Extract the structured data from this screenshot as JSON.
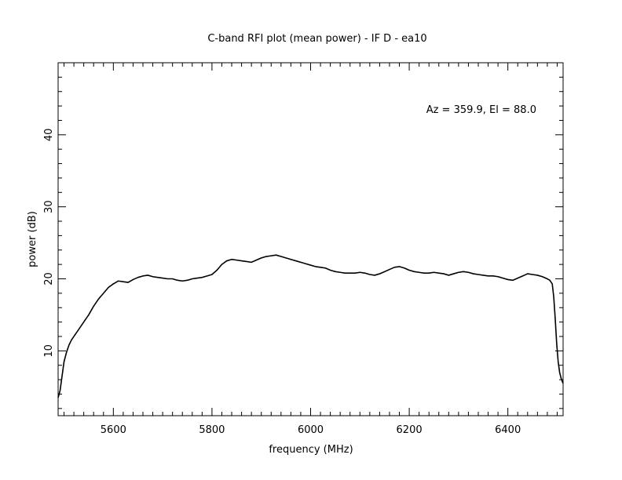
{
  "chart_data": {
    "type": "line",
    "title": "C-band RFI plot (mean power) - IF D - ea10",
    "xlabel": "frequency (MHz)",
    "ylabel": "power (dB)",
    "annotation": "Az = 359.9, El = 88.0",
    "xlim": [
      5488,
      6512
    ],
    "ylim": [
      1,
      50
    ],
    "xticks": [
      5600,
      5800,
      6000,
      6200,
      6400
    ],
    "yticks": [
      10,
      20,
      30,
      40
    ],
    "grid": false,
    "series": [
      {
        "color": "#000000",
        "x": [
          5488,
          5492,
          5496,
          5500,
          5505,
          5510,
          5515,
          5520,
          5530,
          5540,
          5550,
          5560,
          5570,
          5580,
          5590,
          5600,
          5610,
          5620,
          5630,
          5640,
          5650,
          5660,
          5670,
          5680,
          5690,
          5700,
          5710,
          5720,
          5730,
          5740,
          5750,
          5760,
          5770,
          5780,
          5790,
          5800,
          5810,
          5820,
          5830,
          5840,
          5850,
          5860,
          5870,
          5880,
          5890,
          5900,
          5910,
          5920,
          5930,
          5940,
          5950,
          5960,
          5970,
          5980,
          5990,
          6000,
          6010,
          6020,
          6030,
          6040,
          6050,
          6060,
          6070,
          6080,
          6090,
          6100,
          6110,
          6120,
          6130,
          6140,
          6150,
          6160,
          6170,
          6180,
          6190,
          6200,
          6210,
          6220,
          6230,
          6240,
          6250,
          6260,
          6270,
          6280,
          6290,
          6300,
          6310,
          6320,
          6330,
          6340,
          6350,
          6360,
          6370,
          6380,
          6390,
          6400,
          6410,
          6420,
          6430,
          6440,
          6450,
          6460,
          6470,
          6480,
          6485,
          6490,
          6493,
          6496,
          6499,
          6502,
          6505,
          6508,
          6510,
          6512
        ],
        "y": [
          3.5,
          4.5,
          6.5,
          8.5,
          9.8,
          10.8,
          11.5,
          12.0,
          13.0,
          14.0,
          15.0,
          16.2,
          17.2,
          18.0,
          18.8,
          19.3,
          19.7,
          19.6,
          19.5,
          19.9,
          20.2,
          20.4,
          20.5,
          20.3,
          20.2,
          20.1,
          20.0,
          20.0,
          19.8,
          19.7,
          19.8,
          20.0,
          20.1,
          20.2,
          20.4,
          20.6,
          21.2,
          22.0,
          22.5,
          22.7,
          22.6,
          22.5,
          22.4,
          22.3,
          22.6,
          22.9,
          23.1,
          23.2,
          23.3,
          23.1,
          22.9,
          22.7,
          22.5,
          22.3,
          22.1,
          21.9,
          21.7,
          21.6,
          21.5,
          21.2,
          21.0,
          20.9,
          20.8,
          20.8,
          20.8,
          20.9,
          20.8,
          20.6,
          20.5,
          20.7,
          21.0,
          21.3,
          21.6,
          21.7,
          21.5,
          21.2,
          21.0,
          20.9,
          20.8,
          20.8,
          20.9,
          20.8,
          20.7,
          20.5,
          20.7,
          20.9,
          21.0,
          20.9,
          20.7,
          20.6,
          20.5,
          20.4,
          20.4,
          20.3,
          20.1,
          19.9,
          19.8,
          20.1,
          20.4,
          20.7,
          20.6,
          20.5,
          20.3,
          20.0,
          19.8,
          19.3,
          17.5,
          14.5,
          11.0,
          8.5,
          7.0,
          6.2,
          5.8,
          5.5
        ]
      }
    ]
  }
}
